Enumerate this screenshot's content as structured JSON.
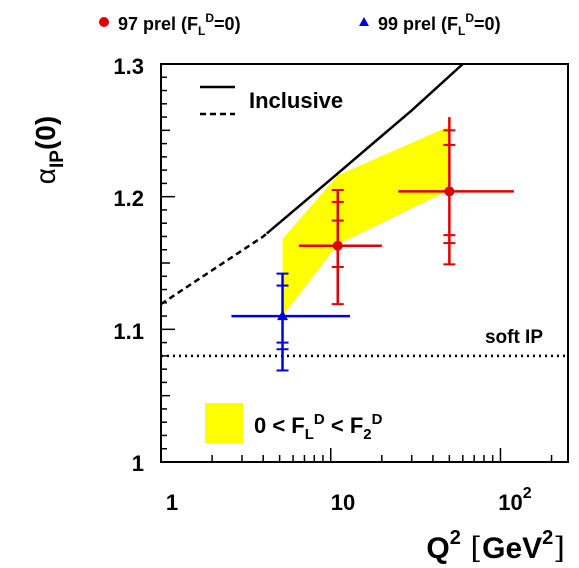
{
  "chart_data": {
    "type": "scatter",
    "title": "",
    "xlabel": {
      "base": "Q",
      "sup": "2",
      "unit_open": "[",
      "unit_base": "GeV",
      "unit_sup": "2",
      "unit_close": "]"
    },
    "ylabel": {
      "base": "α",
      "sub": "IP",
      "tail": "(0)"
    },
    "x_scale": "log",
    "xlim": [
      1,
      250
    ],
    "ylim": [
      1.0,
      1.3
    ],
    "x_ticks": [
      {
        "value": 1,
        "label": "1"
      },
      {
        "value": 10,
        "label": "10"
      },
      {
        "value": 100,
        "label_base": "10",
        "label_sup": "2"
      }
    ],
    "y_ticks": [
      {
        "value": 1.0,
        "label": "1"
      },
      {
        "value": 1.1,
        "label": "1.1"
      },
      {
        "value": 1.2,
        "label": "1.2"
      },
      {
        "value": 1.3,
        "label": "1.3"
      }
    ],
    "grid": false,
    "series": [
      {
        "name": {
          "base": "97 prel (F",
          "sub": "L",
          "sup": "D",
          "tail": "=0)"
        },
        "color": "#e00000",
        "marker": "circle",
        "points": [
          {
            "x": 11,
            "y": 1.163,
            "x_low": 6.5,
            "x_high": 20,
            "stat_low": 1.147,
            "stat_high": 1.182,
            "tot_low": 1.119,
            "tot_high": 1.205,
            "ticks": [
              1.119,
              1.147,
              1.182,
              1.196,
              1.205
            ]
          },
          {
            "x": 50,
            "y": 1.204,
            "x_low": 25,
            "x_high": 120,
            "stat_low": 1.165,
            "stat_high": 1.239,
            "tot_low": 1.149,
            "tot_high": 1.26,
            "ticks": [
              1.149,
              1.165,
              1.171,
              1.239,
              1.25
            ]
          }
        ]
      },
      {
        "name": {
          "base": "99 prel (F",
          "sub": "L",
          "sup": "D",
          "tail": "=0)"
        },
        "color": "#0000e0",
        "marker": "triangle",
        "points": [
          {
            "x": 5.2,
            "y": 1.11,
            "x_low": 2.6,
            "x_high": 13,
            "stat_low": 1.085,
            "stat_high": 1.133,
            "tot_low": 1.069,
            "tot_high": 1.142,
            "ticks": [
              1.069,
              1.085,
              1.09,
              1.133,
              1.142
            ]
          }
        ]
      }
    ],
    "band": {
      "label": {
        "pre": "0 < F",
        "sub1": "L",
        "sup1": "D",
        "mid": " < F",
        "sub2": "2",
        "sup2": "D"
      },
      "color": "#ffff00",
      "upper": [
        [
          5.2,
          1.168
        ],
        [
          11,
          1.216
        ],
        [
          50,
          1.253
        ]
      ],
      "lower": [
        [
          5.2,
          1.11
        ],
        [
          11,
          1.164
        ],
        [
          50,
          1.205
        ]
      ]
    },
    "curves": [
      {
        "name": "Inclusive",
        "points": [
          [
            1,
            1.119
          ],
          [
            4,
            1.17
          ],
          [
            10,
            1.213
          ],
          [
            30,
            1.265
          ],
          [
            60,
            1.3
          ]
        ],
        "dashed_until_x": 4.2
      }
    ],
    "reference_line": {
      "name": "soft IP",
      "y": 1.08,
      "style": "dotted"
    },
    "legend_placement": "top"
  }
}
